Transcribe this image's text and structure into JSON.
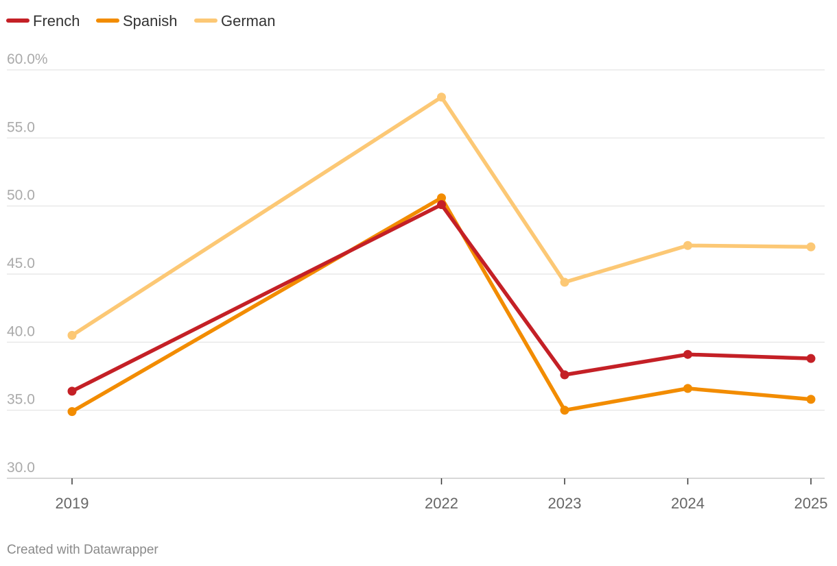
{
  "chart_data": {
    "type": "line",
    "x": [
      2019,
      2022,
      2023,
      2024,
      2025
    ],
    "x_tick_labels": [
      "2019",
      "2022",
      "2023",
      "2024",
      "2025"
    ],
    "series": [
      {
        "name": "French",
        "color": "#c42026",
        "values": [
          36.4,
          50.1,
          37.6,
          39.1,
          38.8
        ]
      },
      {
        "name": "Spanish",
        "color": "#f28c00",
        "values": [
          34.9,
          50.6,
          35.0,
          36.6,
          35.8
        ]
      },
      {
        "name": "German",
        "color": "#fcc875",
        "values": [
          40.5,
          58.0,
          44.4,
          47.1,
          47.0
        ]
      }
    ],
    "y_ticks": [
      30,
      35,
      40,
      45,
      50,
      55,
      60
    ],
    "y_tick_labels": [
      "30.0",
      "35.0",
      "40.0",
      "45.0",
      "50.0",
      "55.0",
      "60.0%"
    ],
    "ylim": [
      30,
      60
    ],
    "grid": true,
    "legend_position": "top-left",
    "title": "",
    "xlabel": "",
    "ylabel": ""
  },
  "footer": {
    "credit": "Created with Datawrapper"
  }
}
